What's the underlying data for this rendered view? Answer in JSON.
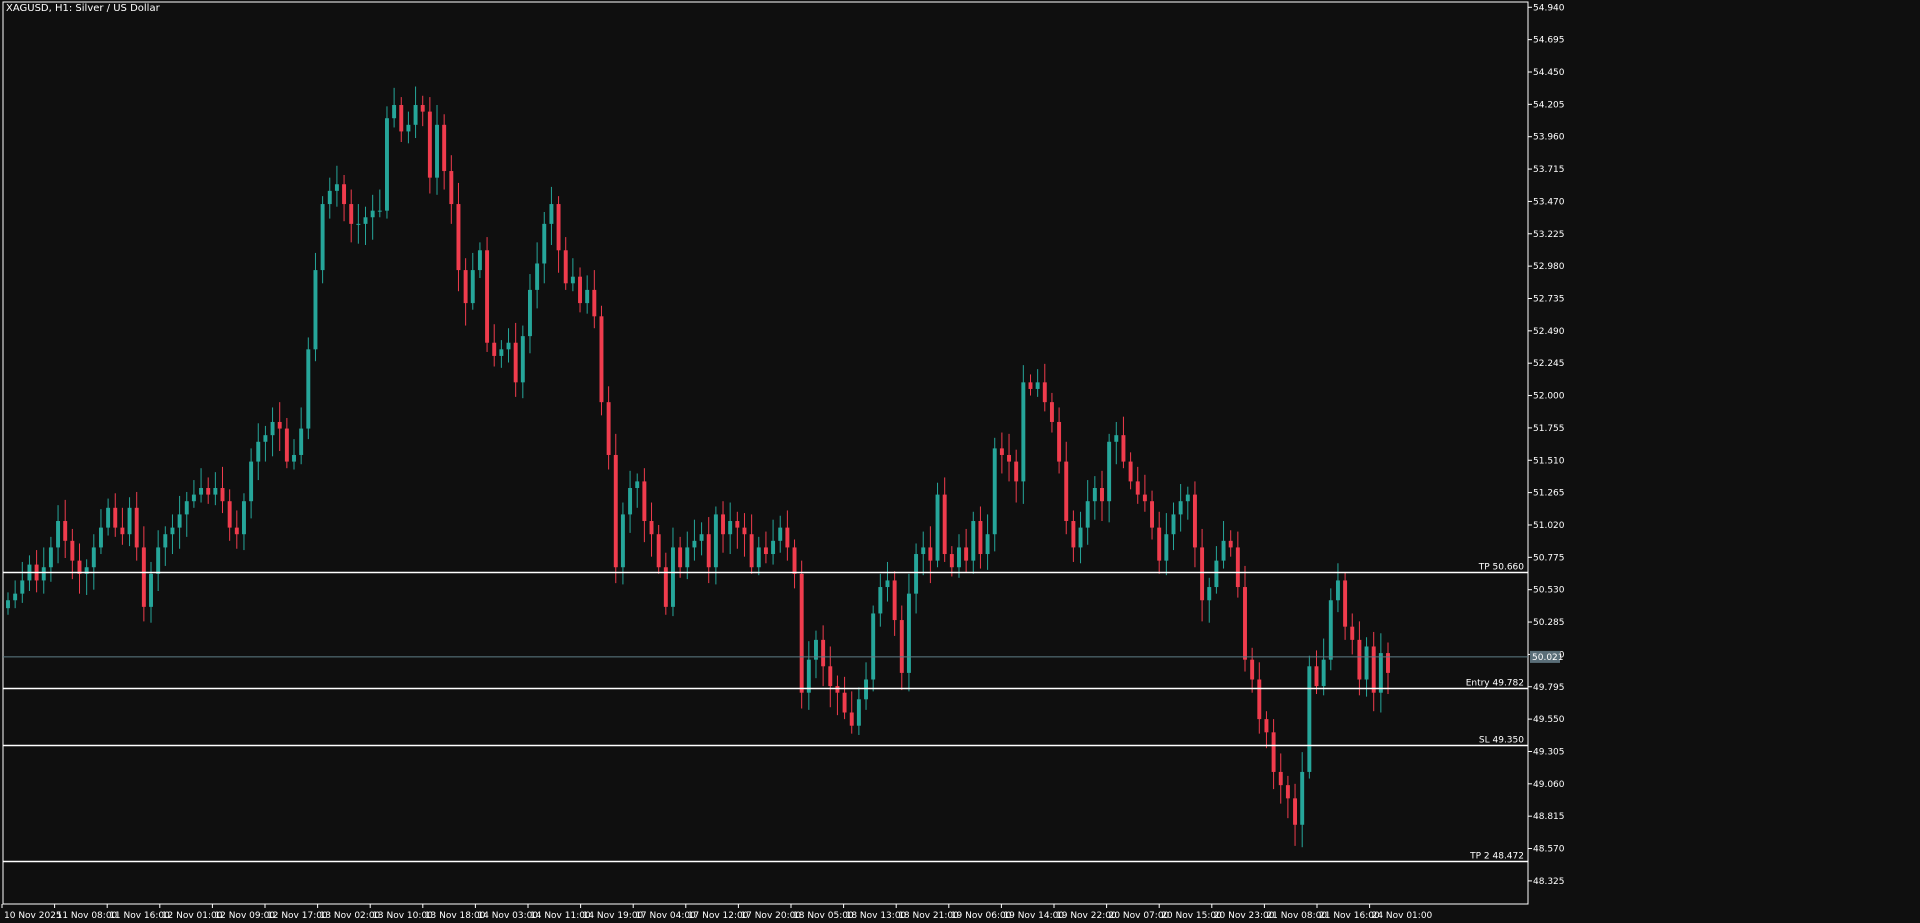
{
  "window": {
    "symbol": "XAGUSD",
    "timeframe": "H1",
    "description": "Silver / US Dollar",
    "title": "XAGUSD, H1:  Silver / US Dollar"
  },
  "colors": {
    "background": "#0f0f0f",
    "bull": "#26a69a",
    "bear": "#ef3c4d",
    "axis": "#ffffff",
    "level_line": "#ffffff",
    "bid_line": "#5f7d86",
    "price_tag_bg": "#5a6e78"
  },
  "chart_data": {
    "type": "candlestick",
    "ylim": [
      48.15,
      54.98
    ],
    "grid": false,
    "y_ticks": [
      "54.940",
      "54.695",
      "54.450",
      "54.205",
      "53.960",
      "53.715",
      "53.470",
      "53.225",
      "52.980",
      "52.735",
      "52.490",
      "52.245",
      "52.000",
      "51.755",
      "51.510",
      "51.265",
      "51.020",
      "50.775",
      "50.530",
      "50.285",
      "50.040",
      "49.795",
      "49.550",
      "49.305",
      "49.060",
      "48.815",
      "48.570",
      "48.325"
    ],
    "x_labels": [
      "10 Nov 2025",
      "11 Nov 08:00",
      "11 Nov 16:00",
      "12 Nov 01:00",
      "12 Nov 09:00",
      "12 Nov 17:00",
      "13 Nov 02:00",
      "13 Nov 10:00",
      "13 Nov 18:00",
      "14 Nov 03:00",
      "14 Nov 11:00",
      "14 Nov 19:00",
      "17 Nov 04:00",
      "17 Nov 12:00",
      "17 Nov 20:00",
      "18 Nov 05:00",
      "18 Nov 13:00",
      "18 Nov 21:00",
      "19 Nov 06:00",
      "19 Nov 14:00",
      "19 Nov 22:00",
      "20 Nov 07:00",
      "20 Nov 15:00",
      "20 Nov 23:00",
      "21 Nov 08:00",
      "21 Nov 16:00",
      "24 Nov 01:00"
    ],
    "current_price": "50.021",
    "levels": [
      {
        "label": "TP 50.660",
        "value": 50.66
      },
      {
        "label": "Entry 49.782",
        "value": 49.782
      },
      {
        "label": "SL 49.350",
        "value": 49.35
      },
      {
        "label": "TP 2 48.472",
        "value": 48.472
      }
    ],
    "close_series": [
      50.45,
      50.5,
      50.6,
      50.72,
      50.6,
      50.7,
      50.85,
      51.05,
      50.9,
      50.75,
      50.65,
      50.7,
      50.85,
      51.0,
      51.15,
      51.0,
      50.95,
      51.15,
      50.85,
      50.4,
      50.65,
      50.85,
      50.95,
      51.0,
      51.1,
      51.2,
      51.25,
      51.3,
      51.25,
      51.3,
      51.2,
      51.0,
      50.95,
      51.2,
      51.5,
      51.65,
      51.7,
      51.8,
      51.75,
      51.5,
      51.55,
      51.75,
      52.35,
      52.95,
      53.45,
      53.55,
      53.6,
      53.45,
      53.3,
      53.3,
      53.35,
      53.4,
      53.4,
      54.1,
      54.2,
      54.0,
      54.05,
      54.2,
      54.15,
      53.65,
      54.05,
      53.7,
      53.45,
      52.95,
      52.7,
      52.95,
      53.1,
      52.4,
      52.3,
      52.35,
      52.4,
      52.1,
      52.45,
      52.8,
      53.0,
      53.3,
      53.45,
      53.1,
      52.85,
      52.9,
      52.7,
      52.8,
      52.6,
      51.95,
      51.55,
      50.7,
      51.1,
      51.3,
      51.35,
      51.05,
      50.95,
      50.7,
      50.4,
      50.85,
      50.7,
      50.85,
      50.9,
      50.95,
      50.7,
      51.1,
      50.95,
      51.05,
      51.0,
      50.95,
      50.7,
      50.85,
      50.8,
      50.9,
      51.0,
      50.85,
      50.65,
      49.75,
      50.0,
      50.15,
      49.95,
      49.8,
      49.75,
      49.6,
      49.5,
      49.7,
      49.85,
      50.35,
      50.55,
      50.6,
      50.3,
      49.9,
      50.5,
      50.8,
      50.85,
      50.75,
      51.25,
      50.8,
      50.7,
      50.85,
      50.75,
      51.05,
      50.8,
      50.95,
      51.6,
      51.55,
      51.5,
      51.35,
      52.1,
      52.05,
      52.1,
      51.95,
      51.8,
      51.5,
      51.05,
      50.85,
      51.0,
      51.2,
      51.3,
      51.2,
      51.65,
      51.7,
      51.5,
      51.35,
      51.25,
      51.2,
      51.0,
      50.75,
      50.95,
      51.1,
      51.2,
      51.25,
      50.85,
      50.45,
      50.55,
      50.75,
      50.9,
      50.85,
      50.55,
      50.0,
      49.85,
      49.55,
      49.45,
      49.15,
      49.05,
      48.95,
      48.75,
      49.15,
      49.95,
      49.8,
      50.0,
      50.45,
      50.6,
      50.25,
      50.15,
      49.85,
      50.1,
      49.75,
      50.05,
      49.9
    ]
  }
}
